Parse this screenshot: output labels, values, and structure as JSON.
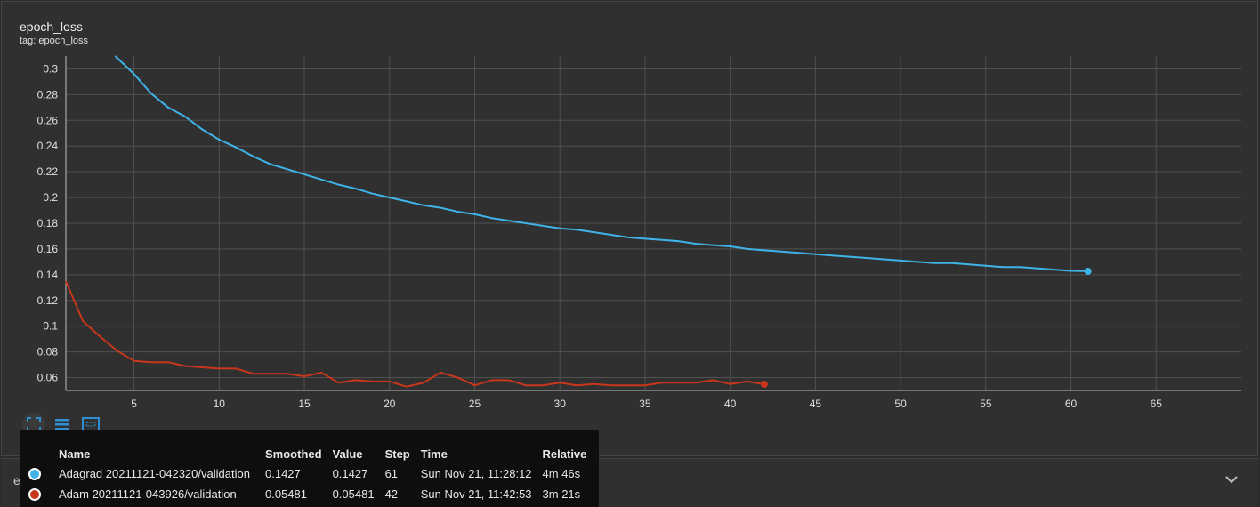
{
  "panel": {
    "title": "epoch_loss",
    "tag": "tag: epoch_loss"
  },
  "next_panel": {
    "title": "evaluation_accuracy_vs_iterations"
  },
  "toolbar": [
    {
      "name": "fit-domain-icon"
    },
    {
      "name": "toggle-list-icon"
    },
    {
      "name": "select-region-icon"
    }
  ],
  "colors": {
    "adagrad": "#3fb3e8",
    "adam": "#c8361b",
    "grid": "#505050",
    "axis": "#bdbdbd",
    "tick_text": "#e0e0e0"
  },
  "chart_data": {
    "type": "line",
    "title": "epoch_loss",
    "subtitle": "tag: epoch_loss",
    "xlim": [
      1,
      70
    ],
    "ylim": [
      0.05,
      0.31
    ],
    "xticks": [
      5,
      10,
      15,
      20,
      25,
      30,
      35,
      40,
      45,
      50,
      55,
      60,
      65
    ],
    "yticks": [
      0.06,
      0.08,
      0.1,
      0.12,
      0.14,
      0.16,
      0.18,
      0.2,
      0.22,
      0.24,
      0.26,
      0.28,
      0.3
    ],
    "ytick_labels": [
      "0.06",
      "0.08",
      "0.1",
      "0.12",
      "0.14",
      "0.16",
      "0.18",
      "0.2",
      "0.22",
      "0.24",
      "0.26",
      "0.28",
      "0.3"
    ],
    "grid": true,
    "series": [
      {
        "name": "Adagrad 20211121-042320/validation",
        "color": "#3fb3e8",
        "x": [
          3.9,
          5,
          6,
          7,
          8,
          9,
          10,
          11,
          12,
          13,
          14,
          15,
          16,
          17,
          18,
          19,
          20,
          21,
          22,
          23,
          24,
          25,
          26,
          27,
          28,
          29,
          30,
          31,
          32,
          33,
          34,
          35,
          36,
          37,
          38,
          39,
          40,
          41,
          42,
          43,
          44,
          45,
          46,
          47,
          48,
          49,
          50,
          51,
          52,
          53,
          54,
          55,
          56,
          57,
          58,
          59,
          60,
          61
        ],
        "y": [
          0.31,
          0.296,
          0.281,
          0.27,
          0.263,
          0.253,
          0.245,
          0.239,
          0.232,
          0.226,
          0.222,
          0.218,
          0.214,
          0.21,
          0.207,
          0.203,
          0.2,
          0.197,
          0.194,
          0.192,
          0.189,
          0.187,
          0.184,
          0.182,
          0.18,
          0.178,
          0.176,
          0.175,
          0.173,
          0.171,
          0.169,
          0.168,
          0.167,
          0.166,
          0.164,
          0.163,
          0.162,
          0.16,
          0.159,
          0.158,
          0.157,
          0.156,
          0.155,
          0.154,
          0.153,
          0.152,
          0.151,
          0.15,
          0.149,
          0.149,
          0.148,
          0.147,
          0.146,
          0.146,
          0.145,
          0.144,
          0.143,
          0.1427
        ]
      },
      {
        "name": "Adam 20211121-043926/validation",
        "color": "#c8361b",
        "x": [
          1,
          2,
          3,
          4,
          5,
          6,
          7,
          8,
          9,
          10,
          11,
          12,
          13,
          14,
          15,
          16,
          17,
          18,
          19,
          20,
          21,
          22,
          23,
          24,
          25,
          26,
          27,
          28,
          29,
          30,
          31,
          32,
          33,
          34,
          35,
          36,
          37,
          38,
          39,
          40,
          41,
          42
        ],
        "y": [
          0.135,
          0.104,
          0.092,
          0.081,
          0.073,
          0.072,
          0.072,
          0.069,
          0.068,
          0.067,
          0.067,
          0.063,
          0.063,
          0.063,
          0.061,
          0.064,
          0.056,
          0.058,
          0.057,
          0.057,
          0.053,
          0.056,
          0.064,
          0.06,
          0.054,
          0.058,
          0.058,
          0.054,
          0.054,
          0.056,
          0.054,
          0.055,
          0.054,
          0.054,
          0.054,
          0.056,
          0.056,
          0.056,
          0.058,
          0.055,
          0.057,
          0.05481
        ]
      }
    ],
    "tooltip": {
      "headers": [
        "Name",
        "Smoothed",
        "Value",
        "Step",
        "Time",
        "Relative"
      ],
      "rows": [
        [
          "Adagrad 20211121-042320/validation",
          "0.1427",
          "0.1427",
          "61",
          "Sun Nov 21, 11:28:12",
          "4m 46s"
        ],
        [
          "Adam 20211121-043926/validation",
          "0.05481",
          "0.05481",
          "42",
          "Sun Nov 21, 11:42:53",
          "3m 21s"
        ]
      ]
    }
  }
}
